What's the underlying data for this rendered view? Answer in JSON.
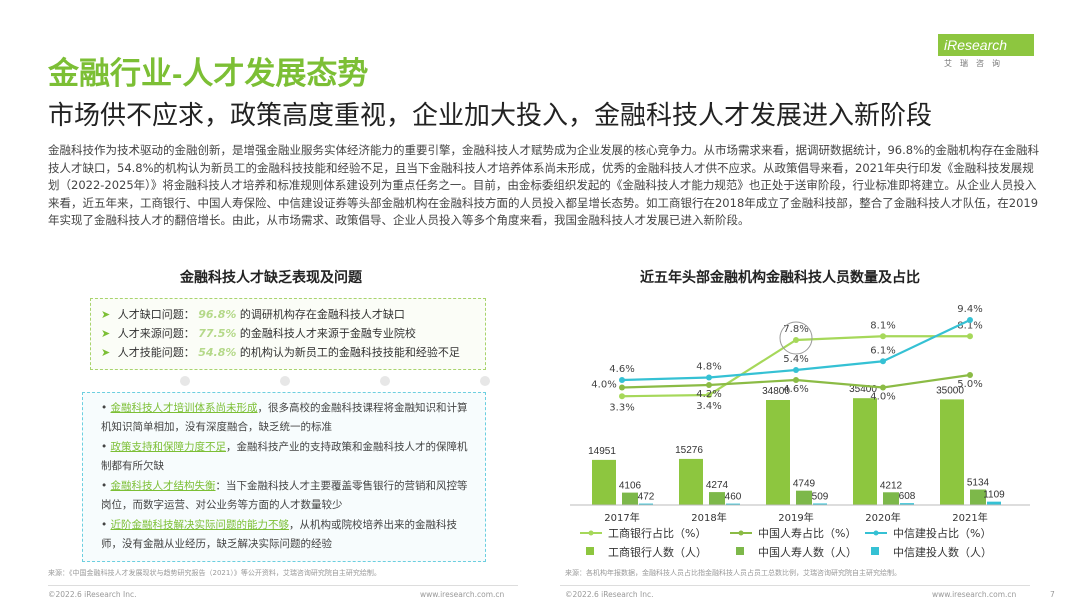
{
  "logo": {
    "text": "iResearch",
    "sub": "艾瑞咨询"
  },
  "title": "金融行业-人才发展态势",
  "subtitle": "市场供不应求，政策高度重视，企业加大投入，金融科技人才发展进入新阶段",
  "intro": "金融科技作为技术驱动的金融创新，是增强金融业服务实体经济能力的重要引擎，金融科技人才赋势成为企业发展的核心竞争力。从市场需求来看，据调研数据统计，96.8%的金融机构存在金融科技人才缺口，54.8%的机构认为新员工的金融科技技能和经验不足，且当下金融科技人才培养体系尚未形成，优秀的金融科技人才供不应求。从政策倡导来看，2021年央行印发《金融科技发展规划（2022-2025年）》将金融科技人才培养和标准规则体系建设列为重点任务之一。目前，由金标委组织发起的《金融科技人才能力规范》也正处于送审阶段，行业标准即将建立。从企业人员投入来看，近五年来，工商银行、中国人寿保险、中信建设证券等头部金融机构在金融科技方面的人员投入都呈增长态势。如工商银行在2018年成立了金融科技部，整合了金融科技人才队伍，在2019年实现了金融科技人才的翻倍增长。由此，从市场需求、政策倡导、企业人员投入等多个角度来看，我国金融科技人才发展已进入新阶段。",
  "left_panel": {
    "title": "金融科技人才缺乏表现及问题",
    "rows": [
      {
        "label": "人才缺口问题：",
        "pct": "96.8%",
        "text": "的调研机构存在金融科技人才缺口"
      },
      {
        "label": "人才来源问题：",
        "pct": "77.5%",
        "text": "的金融科技人才来源于金融专业院校"
      },
      {
        "label": "人才技能问题：",
        "pct": "54.8%",
        "text": "的机构认为新员工的金融科技技能和经验不足"
      }
    ],
    "issues": [
      {
        "head": "金融科技人才培训体系尚未形成",
        "text": "，很多高校的金融科技课程将金融知识和计算机知识简单相加，没有深度融合，缺乏统一的标准"
      },
      {
        "head": "政策支持和保障力度不足",
        "text": "，金融科技产业的支持政策和金融科技人才的保障机制都有所欠缺"
      },
      {
        "head": "金融科技人才结构失衡",
        "text": "：当下金融科技人才主要覆盖零售银行的营销和风控等岗位，而数字运营、对公业务等方面的人才数量较少"
      },
      {
        "head": "近阶金融科技解决实际问题的能力不够",
        "text": "，从机构或院校培养出来的金融科技师，没有金融从业经历，缺乏解决实际问题的经验"
      }
    ],
    "note": "来源：《中国金融科技人才发展现状与趋势研究报告（2021）》等公开资料，艾瑞咨询研究院自主研究绘制。"
  },
  "chart_data": {
    "type": "bar",
    "title": "近五年头部金融机构金融科技人员数量及占比",
    "categories": [
      "2017年",
      "2018年",
      "2019年",
      "2020年",
      "2021年"
    ],
    "series": [
      {
        "name": "工商银行人数（人）",
        "values": [
          14951,
          15276,
          34800,
          35400,
          35000
        ],
        "color": "#8dc63f"
      },
      {
        "name": "中国人寿人数（人）",
        "values": [
          4106,
          4274,
          4749,
          4212,
          5134
        ],
        "color": "#7db84a"
      },
      {
        "name": "中信建投人数（人）",
        "values": [
          472,
          460,
          509,
          608,
          1109
        ],
        "color": "#35c1d4"
      }
    ],
    "lines": [
      {
        "name": "工商银行占比（%）",
        "values": [
          3.3,
          3.4,
          7.8,
          8.1,
          8.1
        ],
        "labels": [
          "3.3%",
          "3.4%",
          "7.8%",
          "8.1%",
          "8.1%"
        ],
        "color": "#a6d85a"
      },
      {
        "name": "中国人寿占比（%）",
        "values": [
          4.0,
          4.2,
          4.6,
          4.0,
          5.0
        ],
        "labels": [
          "4.0%",
          "4.2%",
          "4.6%",
          "4.0%",
          "5.0%"
        ],
        "color": "#8bbb45"
      },
      {
        "name": "中信建投占比（%）",
        "values": [
          4.6,
          4.8,
          5.4,
          6.1,
          9.4
        ],
        "labels": [
          "4.6%",
          "4.8%",
          "5.4%",
          "6.1%",
          "9.4%"
        ],
        "color": "#35c1d4"
      }
    ],
    "note": "来源：各机构年报数据，金融科技人员占比指金融科技人员占员工总数比例，艾瑞咨询研究院自主研究绘制。"
  },
  "footer": {
    "copyright": "©2022.6 iResearch Inc.",
    "site": "www.iresearch.com.cn",
    "page": "7"
  }
}
